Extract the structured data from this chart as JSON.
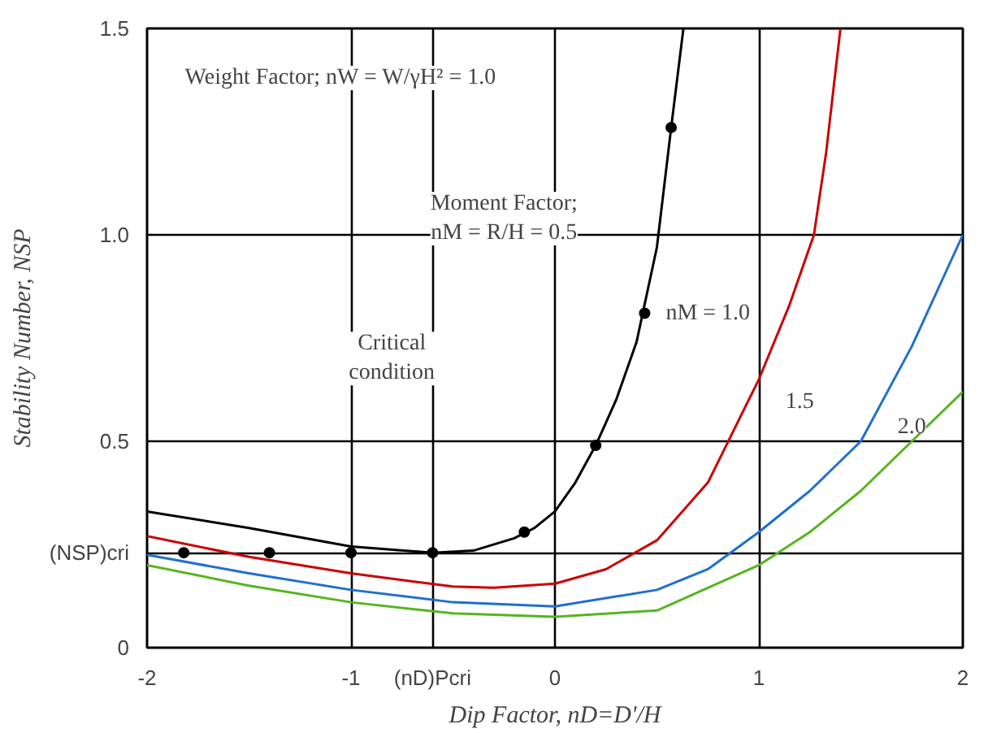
{
  "chart_data": {
    "type": "line",
    "xlabel": "Dip Factor, nD=D'/H",
    "ylabel": "Stability Number, NSP",
    "xlim": [
      -2,
      2
    ],
    "ylim": [
      0,
      1.5
    ],
    "xticks": [
      -2,
      -1,
      {
        "value": -0.6,
        "label": "(nD)Pcri"
      },
      0,
      1,
      2
    ],
    "yticks": [
      0,
      {
        "value": 0.23,
        "label": "(NSP)cri"
      },
      0.5,
      {
        "value": 1.0,
        "label": "1.0"
      },
      1.5
    ],
    "grid": true,
    "marker": "none",
    "line_style": "solid",
    "series": [
      {
        "color": "#000000",
        "x": [
          -2,
          -1.5,
          -1,
          -0.6,
          -0.4,
          -0.2,
          -0.1,
          0,
          0.1,
          0.2,
          0.3,
          0.4,
          0.5,
          0.57,
          0.63
        ],
        "values": [
          0.33,
          0.29,
          0.245,
          0.23,
          0.235,
          0.265,
          0.29,
          0.33,
          0.4,
          0.49,
          0.6,
          0.74,
          0.97,
          1.26,
          1.5
        ]
      },
      {
        "color": "#cc0000",
        "x": [
          -2,
          -1.5,
          -1,
          -0.5,
          -0.3,
          0,
          0.25,
          0.5,
          0.75,
          1,
          1.15,
          1.27,
          1.33,
          1.4
        ],
        "values": [
          0.27,
          0.22,
          0.18,
          0.148,
          0.145,
          0.155,
          0.19,
          0.26,
          0.4,
          0.65,
          0.83,
          1.0,
          1.2,
          1.5
        ]
      },
      {
        "color": "#1f6fd0",
        "x": [
          -2,
          -1.5,
          -1,
          -0.5,
          0,
          0.5,
          0.75,
          1,
          1.25,
          1.5,
          1.75,
          2
        ],
        "values": [
          0.225,
          0.18,
          0.14,
          0.11,
          0.1,
          0.14,
          0.19,
          0.28,
          0.38,
          0.5,
          0.73,
          1.0
        ]
      },
      {
        "color": "#55b520",
        "x": [
          -2,
          -1.5,
          -1,
          -0.5,
          0,
          0.5,
          1,
          1.25,
          1.5,
          1.75,
          2
        ],
        "values": [
          0.2,
          0.15,
          0.11,
          0.083,
          0.075,
          0.09,
          0.2,
          0.28,
          0.38,
          0.5,
          0.62
        ]
      },
      {
        "type": "scatter",
        "marker": "circle",
        "color": "#000000",
        "x": [
          -1.82,
          -1.4,
          -1,
          -0.6,
          -0.15,
          0.2,
          0.44,
          0.57
        ],
        "values": [
          0.23,
          0.23,
          0.23,
          0.23,
          0.28,
          0.49,
          0.81,
          1.26
        ]
      }
    ],
    "annotations": [
      "Weight Factor; nW = W/γH² = 1.0",
      "Moment Factor;\nnM = R/H = 0.5",
      "nM = 1.0",
      {
        "text": "1.5",
        "x": 1.2,
        "y": 0.6
      },
      {
        "text": "2.0",
        "x": 1.75,
        "y": 0.54
      },
      "Critical\ncondition"
    ]
  }
}
